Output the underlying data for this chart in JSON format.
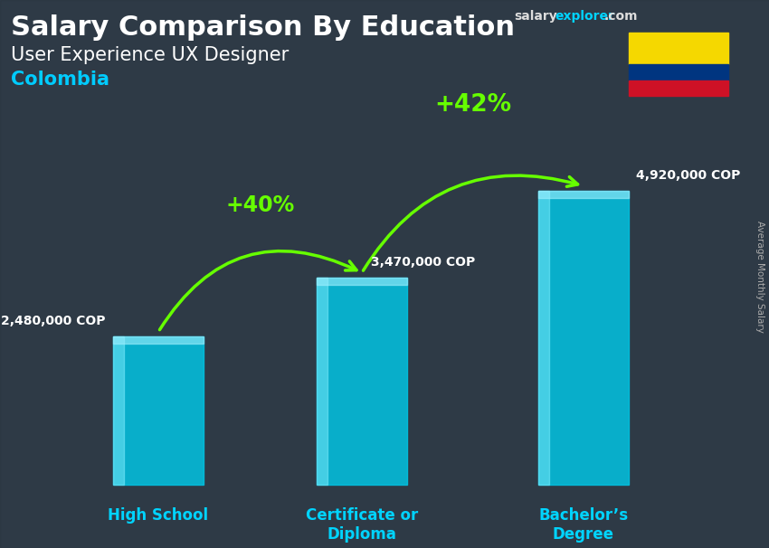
{
  "title_salary": "Salary Comparison By Education",
  "subtitle": "User Experience UX Designer",
  "country": "Colombia",
  "categories": [
    "High School",
    "Certificate or\nDiploma",
    "Bachelor’s\nDegree"
  ],
  "values": [
    2480000,
    3470000,
    4920000
  ],
  "value_labels": [
    "2,480,000 COP",
    "3,470,000 COP",
    "4,920,000 COP"
  ],
  "pct_labels": [
    "+40%",
    "+42%"
  ],
  "bar_color": "#00c8e8",
  "bar_alpha": 0.82,
  "bg_color": "#3a4a58",
  "text_color": "#ffffff",
  "green_color": "#66ff00",
  "cyan_label_color": "#00d4ff",
  "title_color": "#ffffff",
  "country_color": "#00ccff",
  "ylim": [
    0,
    6200000
  ],
  "ylabel": "Average Monthly Salary",
  "bar_width": 0.55,
  "colombia_flag_yellow": "#f5d800",
  "colombia_flag_blue": "#003580",
  "colombia_flag_red": "#ce1126",
  "arrow_color": "#66ff00",
  "site_salary_color": "#dddddd",
  "site_explorer_color": "#00d4ff",
  "site_com_color": "#dddddd",
  "label_fontsize": 10,
  "pct_fontsize": 17,
  "cat_fontsize": 12,
  "title_fontsize": 22,
  "subtitle_fontsize": 15
}
